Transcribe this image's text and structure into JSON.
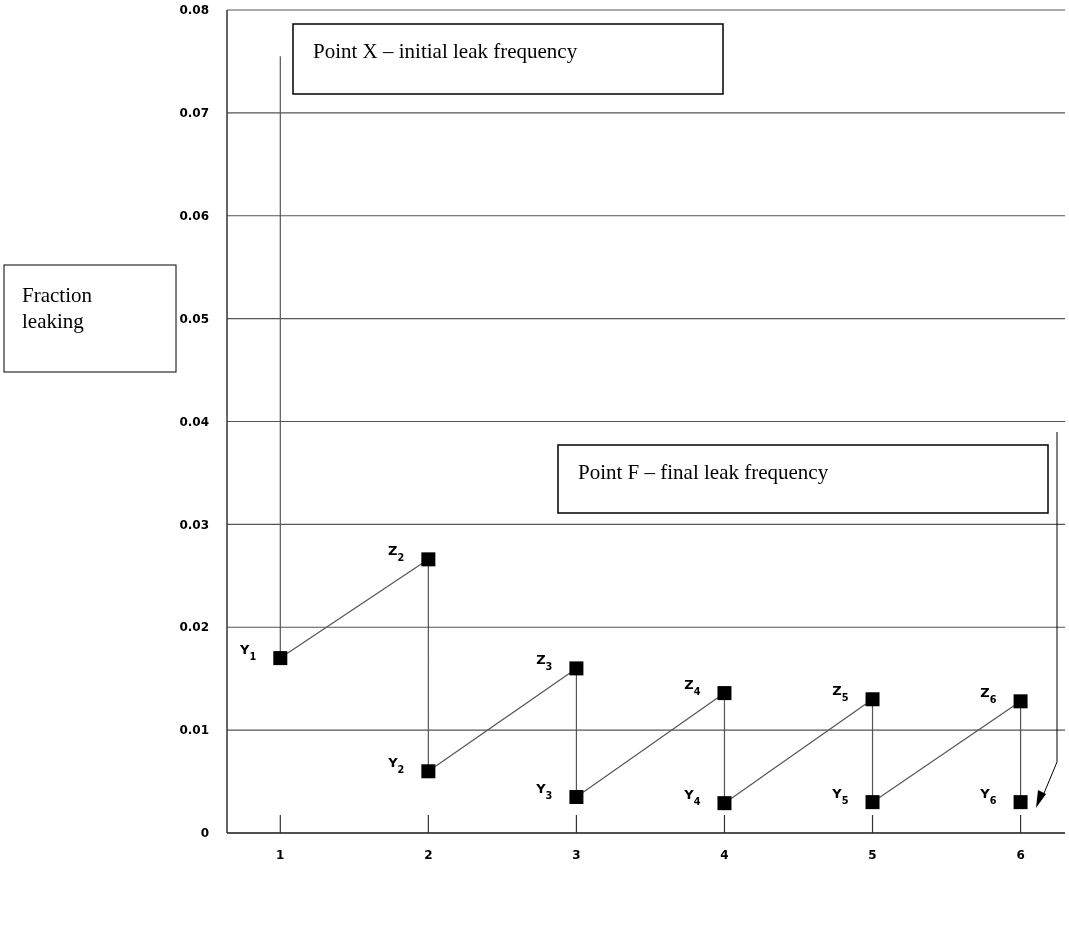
{
  "chart_data": {
    "type": "scatter",
    "ylabel": "Fraction leaking",
    "xlim": [
      0.64,
      6.3
    ],
    "xticks": [
      1,
      2,
      3,
      4,
      5,
      6
    ],
    "ylim": [
      0,
      0.08
    ],
    "yticks": [
      0,
      0.01,
      0.02,
      0.03,
      0.04,
      0.05,
      0.06,
      0.07,
      0.08
    ],
    "grid": "y",
    "series": [
      {
        "type": "line",
        "color": "#555555",
        "marker": "none",
        "x": [
          1,
          1,
          2,
          2,
          3,
          3,
          4,
          4,
          5,
          5,
          6,
          6
        ],
        "values": [
          0.0755,
          0.017,
          0.0266,
          0.006,
          0.016,
          0.0035,
          0.0136,
          0.0029,
          0.013,
          0.003,
          0.0128,
          0.003
        ]
      },
      {
        "color": "#000000",
        "marker": "square",
        "x": [
          1,
          2,
          2,
          3,
          3,
          4,
          4,
          5,
          5,
          6,
          6
        ],
        "values": [
          0.017,
          0.0266,
          0.006,
          0.016,
          0.0035,
          0.0136,
          0.0029,
          0.013,
          0.003,
          0.0128,
          0.003
        ]
      }
    ],
    "annotations": [
      "Point X – initial leak frequency",
      "Point F – final leak frequency",
      {
        "text": "Y$_{1}$",
        "x": 1,
        "y": 0.017
      },
      {
        "text": "Z$_{2}$",
        "x": 2,
        "y": 0.0266
      },
      {
        "text": "Y$_{2}$",
        "x": 2,
        "y": 0.006
      },
      {
        "text": "Z$_{3}$",
        "x": 3,
        "y": 0.016
      },
      {
        "text": "Y$_{3}$",
        "x": 3,
        "y": 0.0035
      },
      {
        "text": "Z$_{4}$",
        "x": 4,
        "y": 0.0136
      },
      {
        "text": "Y$_{4}$",
        "x": 4,
        "y": 0.0029
      },
      {
        "text": "Z$_{5}$",
        "x": 5,
        "y": 0.013
      },
      {
        "text": "Y$_{5}$",
        "x": 5,
        "y": 0.003
      },
      {
        "text": "Z$_{6}$",
        "x": 6,
        "y": 0.0128
      },
      {
        "text": "Y$_{6}$",
        "x": 6,
        "y": 0.003
      }
    ]
  }
}
